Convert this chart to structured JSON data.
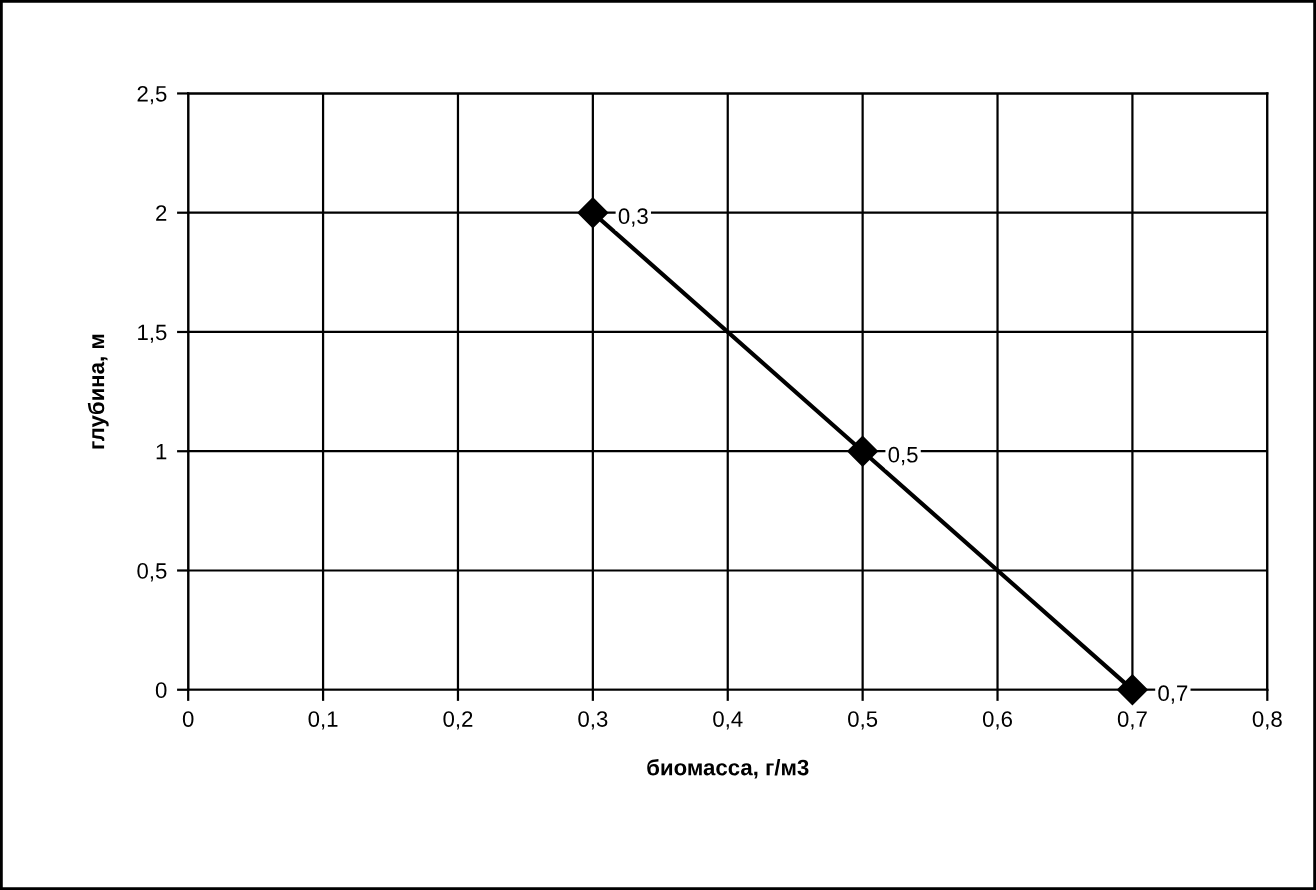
{
  "chart_data": {
    "type": "line",
    "xlabel": "биомасса, г/м3",
    "ylabel": "глубина, м",
    "series": [
      {
        "color": "#000000",
        "x": [
          0.3,
          0.5,
          0.7
        ],
        "values": [
          2,
          1,
          0
        ]
      }
    ],
    "annotations": [
      {
        "text": "0,3",
        "x": 0.3,
        "y": 2
      },
      {
        "text": "0,5",
        "x": 0.5,
        "y": 1
      },
      {
        "text": "0,7",
        "x": 0.7,
        "y": 0
      }
    ],
    "xlim": [
      0,
      0.8
    ],
    "ylim": [
      0,
      2.5
    ],
    "xticks": [
      0,
      {
        "value": 0.1,
        "label": "0,1"
      },
      {
        "value": 0.2,
        "label": "0,2"
      },
      {
        "value": 0.3,
        "label": "0,3"
      },
      {
        "value": 0.4,
        "label": "0,4"
      },
      {
        "value": 0.5,
        "label": "0,5"
      },
      {
        "value": 0.6,
        "label": "0,6"
      },
      {
        "value": 0.7,
        "label": "0,7"
      },
      {
        "value": 0.8,
        "label": "0,8"
      }
    ],
    "yticks": [
      0,
      {
        "value": 0.5,
        "label": "0,5"
      },
      1,
      {
        "value": 1.5,
        "label": "1,5"
      },
      2,
      {
        "value": 2.5,
        "label": "2,5"
      }
    ],
    "grid": true,
    "marker": "diamond",
    "line_style": "solid"
  }
}
